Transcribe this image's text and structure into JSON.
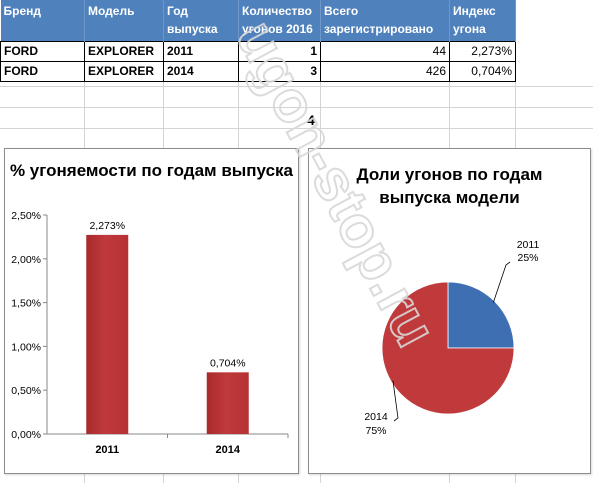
{
  "table": {
    "headers": [
      "Бренд",
      "Модель",
      "Год\nвыпуска",
      "Количество\nугонов 2016",
      "Всего\nзарегистрировано",
      "Индекс\nугона"
    ],
    "rows": [
      {
        "brand": "FORD",
        "model": "EXPLORER",
        "year": "2011",
        "thefts": "1",
        "registered": "44",
        "index": "2,273%"
      },
      {
        "brand": "FORD",
        "model": "EXPLORER",
        "year": "2014",
        "thefts": "3",
        "registered": "426",
        "index": "0,704%"
      }
    ],
    "total_thefts": "4"
  },
  "chart_data": [
    {
      "type": "bar",
      "title": "% угоняемости  по годам  выпуска",
      "categories": [
        "2011",
        "2014"
      ],
      "values": [
        2.273,
        0.704
      ],
      "data_labels": [
        "2,273%",
        "0,704%"
      ],
      "yticks": [
        "0,00%",
        "0,50%",
        "1,00%",
        "1,50%",
        "2,00%",
        "2,50%"
      ],
      "ylim": [
        0,
        2.5
      ],
      "color": "#c0393b"
    },
    {
      "type": "pie",
      "title": "Доли угонов  по годам выпуска модели",
      "labels": [
        "2011",
        "2014"
      ],
      "values": [
        25,
        75
      ],
      "percent_labels": [
        "25%",
        "75%"
      ],
      "colors": [
        "#3f6fb3",
        "#c0393b"
      ]
    }
  ],
  "watermark": "ugon-stop.ru"
}
